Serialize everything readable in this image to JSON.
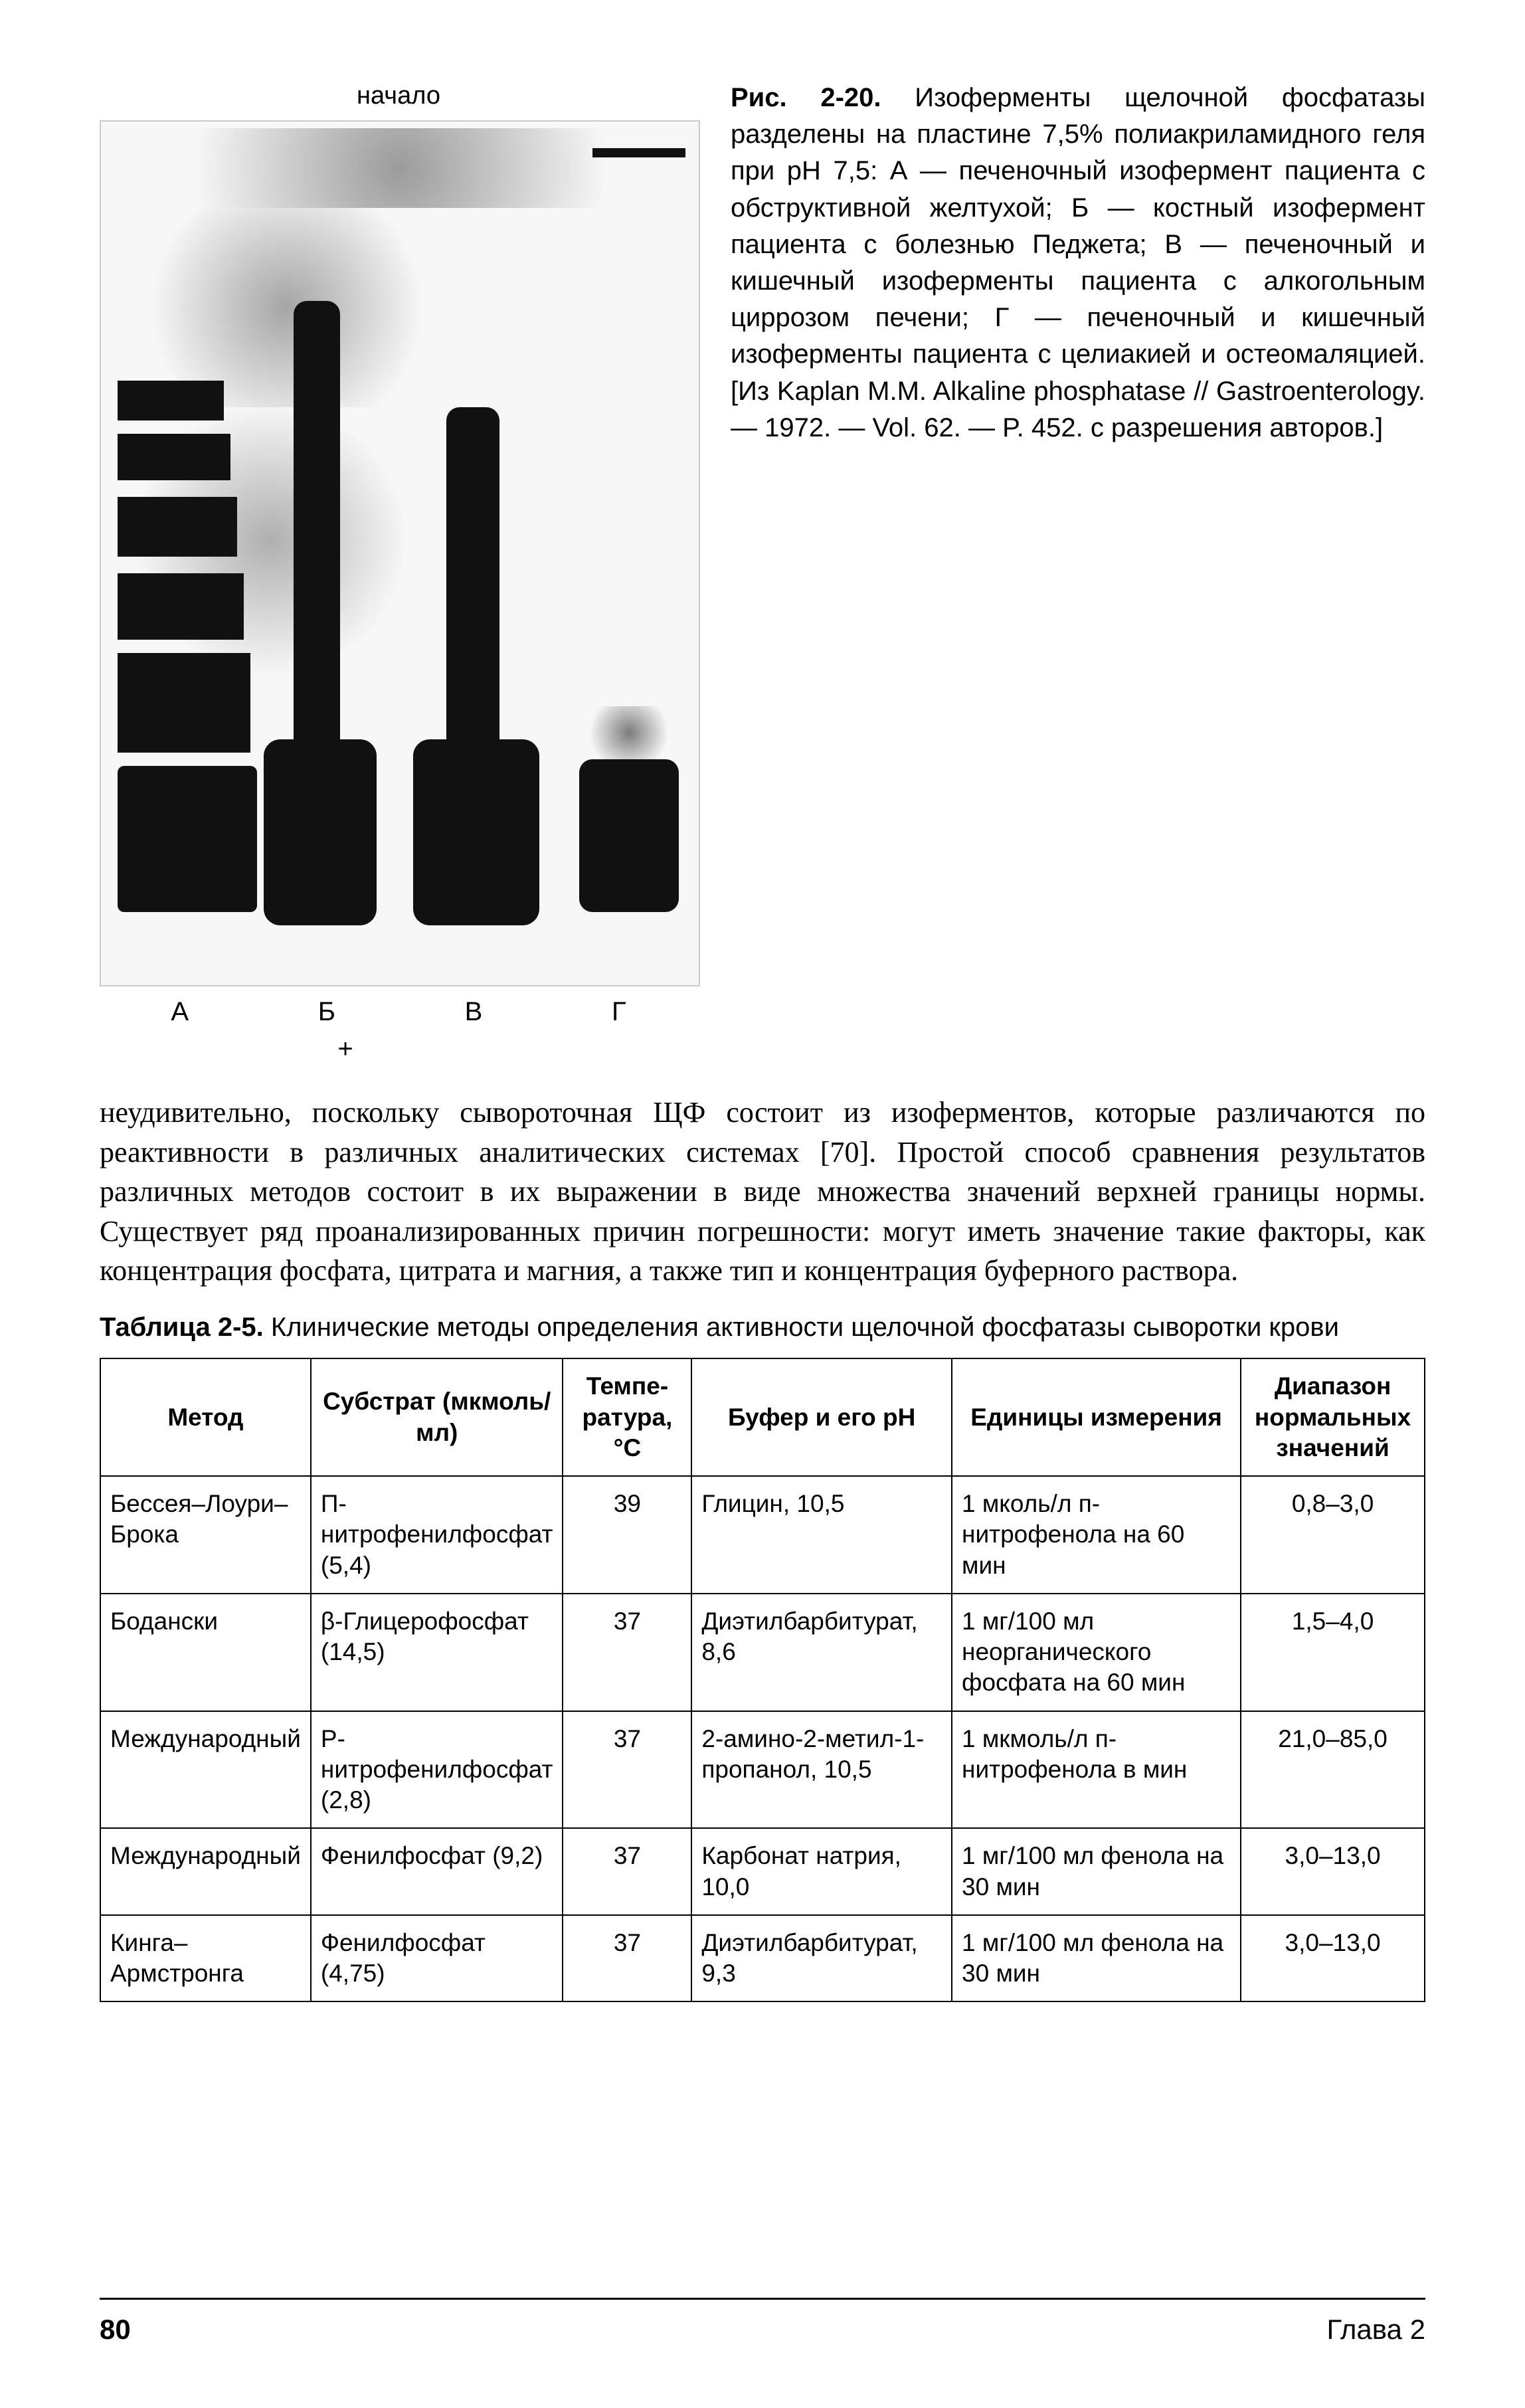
{
  "figure": {
    "top_label": "начало",
    "bottom_labels": [
      "А",
      "Б",
      "В",
      "Г"
    ],
    "plus": "+",
    "caption_bold": "Рис. 2-20.",
    "caption_text": " Изоферменты щелочной фосфатазы разделены на пластине 7,5% полиакриламидного геля при pH 7,5: А — печеночный изофермент пациента с обструктивной желтухой; Б — костный изофермент пациента с болезнью Педжета; В — печеночный и кишечный изоферменты пациента с алкогольным циррозом печени; Г — печеночный и кишечный изоферменты пациента с целиакией и остеомаляцией. [Из Kaplan M.M. Alkaline phosphatase // Gastroenterology. — 1972. — Vol. 62. — P. 452. с разрешения авторов.]"
  },
  "body_paragraph": "неудивительно, поскольку сывороточная ЩФ состоит из изоферментов, которые различаются по реактивности в различных аналитических системах [70]. Простой способ сравнения результатов различных методов состоит в их выражении в виде множества значений верхней границы нормы. Существует ряд проанализированных причин погрешности: могут иметь значение такие факторы, как концентрация фосфата, цитрата и магния, а также тип и концентрация буферного раствора.",
  "table": {
    "title_bold": "Таблица 2-5.",
    "title_rest": " Клинические методы определения активности щелочной фосфатазы сыворотки крови",
    "headers": {
      "method": "Метод",
      "substrate": "Субстрат (мкмоль/мл)",
      "temp": "Темпе-ратура, °C",
      "buffer": "Буфер и его pH",
      "units": "Единицы измерения",
      "range": "Диапазон нормальных значений"
    },
    "rows": [
      {
        "method": "Бессея–Лоури–Брока",
        "substrate": "П-нитрофенилфосфат (5,4)",
        "temp": "39",
        "buffer": "Глицин, 10,5",
        "units": "1 мколь/л п-нитрофенола на 60 мин",
        "range": "0,8–3,0"
      },
      {
        "method": "Бодански",
        "substrate": "β-Глицерофосфат (14,5)",
        "temp": "37",
        "buffer": "Диэтилбарбитурат, 8,6",
        "units": "1 мг/100 мл неорганического фосфата на 60 мин",
        "range": "1,5–4,0"
      },
      {
        "method": "Международный",
        "substrate": "P-нитрофенилфосфат (2,8)",
        "temp": "37",
        "buffer": "2-амино-2-метил-1-пропанол, 10,5",
        "units": "1 мкмоль/л п-нитрофенола в мин",
        "range": "21,0–85,0"
      },
      {
        "method": "Международный",
        "substrate": "Фенилфосфат (9,2)",
        "temp": "37",
        "buffer": "Карбонат натрия, 10,0",
        "units": "1 мг/100 мл фенола на 30 мин",
        "range": "3,0–13,0"
      },
      {
        "method": "Кинга–Армстронга",
        "substrate": "Фенилфосфат (4,75)",
        "temp": "37",
        "buffer": "Диэтилбарбитурат, 9,3",
        "units": "1 мг/100 мл фенола на 30 мин",
        "range": "3,0–13,0"
      }
    ]
  },
  "footer": {
    "page": "80",
    "chapter": "Глава 2"
  }
}
